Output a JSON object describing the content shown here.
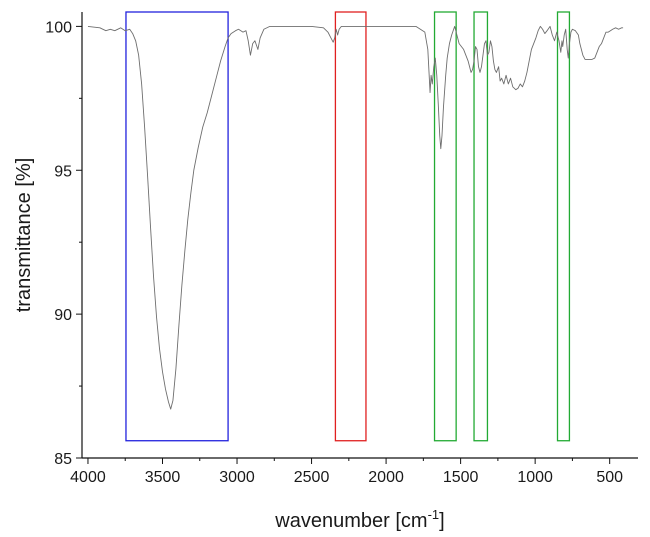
{
  "chart_data": {
    "type": "line",
    "title": "",
    "xlabel": "wavenumber [cm-1]",
    "xlabel_parts": {
      "text": "wavenumber [cm",
      "superscript": "-1",
      "suffix": "]"
    },
    "ylabel": "transmittance [%]",
    "xlim": [
      4040,
      310
    ],
    "ylim": [
      85,
      100.5
    ],
    "x_reversed": true,
    "grid": false,
    "x_ticks": [
      4000,
      3500,
      3000,
      2500,
      2000,
      1500,
      1000,
      500
    ],
    "x_minor_ticks": [
      3750,
      3250,
      2750,
      2250,
      1750,
      1250,
      750
    ],
    "y_ticks": [
      85,
      90,
      95,
      100
    ],
    "y_minor_ticks": [
      87.5,
      92.5,
      97.5
    ],
    "series": [
      {
        "color": "#6e6e6e",
        "points": [
          [
            4000,
            100.0
          ],
          [
            3920,
            99.95
          ],
          [
            3880,
            99.85
          ],
          [
            3850,
            99.9
          ],
          [
            3820,
            99.85
          ],
          [
            3780,
            99.95
          ],
          [
            3750,
            99.85
          ],
          [
            3720,
            99.9
          ],
          [
            3700,
            99.75
          ],
          [
            3680,
            99.5
          ],
          [
            3660,
            99.0
          ],
          [
            3640,
            98.0
          ],
          [
            3620,
            96.5
          ],
          [
            3600,
            94.8
          ],
          [
            3580,
            93.0
          ],
          [
            3560,
            91.3
          ],
          [
            3540,
            89.9
          ],
          [
            3520,
            88.8
          ],
          [
            3500,
            88.0
          ],
          [
            3480,
            87.4
          ],
          [
            3460,
            86.95
          ],
          [
            3445,
            86.7
          ],
          [
            3430,
            87.0
          ],
          [
            3410,
            88.1
          ],
          [
            3390,
            89.6
          ],
          [
            3370,
            91.0
          ],
          [
            3350,
            92.2
          ],
          [
            3330,
            93.3
          ],
          [
            3310,
            94.2
          ],
          [
            3290,
            95.0
          ],
          [
            3260,
            95.8
          ],
          [
            3230,
            96.5
          ],
          [
            3200,
            97.0
          ],
          [
            3170,
            97.6
          ],
          [
            3140,
            98.2
          ],
          [
            3110,
            98.8
          ],
          [
            3080,
            99.3
          ],
          [
            3060,
            99.6
          ],
          [
            3040,
            99.75
          ],
          [
            3010,
            99.85
          ],
          [
            2990,
            99.9
          ],
          [
            2960,
            99.8
          ],
          [
            2940,
            99.85
          ],
          [
            2925,
            99.5
          ],
          [
            2910,
            99.0
          ],
          [
            2895,
            99.4
          ],
          [
            2880,
            99.5
          ],
          [
            2860,
            99.2
          ],
          [
            2845,
            99.6
          ],
          [
            2820,
            99.9
          ],
          [
            2780,
            100.0
          ],
          [
            2700,
            100.0
          ],
          [
            2600,
            100.0
          ],
          [
            2500,
            100.0
          ],
          [
            2420,
            99.95
          ],
          [
            2390,
            99.8
          ],
          [
            2370,
            99.6
          ],
          [
            2355,
            99.45
          ],
          [
            2345,
            99.6
          ],
          [
            2335,
            99.9
          ],
          [
            2325,
            99.7
          ],
          [
            2315,
            99.9
          ],
          [
            2300,
            100.0
          ],
          [
            2200,
            100.0
          ],
          [
            2100,
            100.0
          ],
          [
            2000,
            100.0
          ],
          [
            1900,
            100.0
          ],
          [
            1800,
            100.0
          ],
          [
            1740,
            99.8
          ],
          [
            1720,
            99.2
          ],
          [
            1712,
            98.4
          ],
          [
            1705,
            97.7
          ],
          [
            1698,
            98.3
          ],
          [
            1690,
            98.0
          ],
          [
            1680,
            98.6
          ],
          [
            1670,
            98.9
          ],
          [
            1660,
            98.3
          ],
          [
            1650,
            97.3
          ],
          [
            1640,
            96.2
          ],
          [
            1633,
            95.75
          ],
          [
            1625,
            96.2
          ],
          [
            1615,
            97.2
          ],
          [
            1600,
            98.3
          ],
          [
            1590,
            98.9
          ],
          [
            1575,
            99.4
          ],
          [
            1560,
            99.7
          ],
          [
            1540,
            100.0
          ],
          [
            1525,
            99.7
          ],
          [
            1510,
            99.4
          ],
          [
            1495,
            99.3
          ],
          [
            1480,
            99.2
          ],
          [
            1465,
            99.0
          ],
          [
            1450,
            98.8
          ],
          [
            1440,
            98.6
          ],
          [
            1430,
            98.4
          ],
          [
            1420,
            98.5
          ],
          [
            1410,
            98.8
          ],
          [
            1400,
            99.3
          ],
          [
            1390,
            99.2
          ],
          [
            1380,
            98.6
          ],
          [
            1370,
            98.4
          ],
          [
            1360,
            98.6
          ],
          [
            1350,
            99.0
          ],
          [
            1340,
            99.4
          ],
          [
            1330,
            99.5
          ],
          [
            1320,
            99.0
          ],
          [
            1310,
            99.1
          ],
          [
            1300,
            99.5
          ],
          [
            1290,
            99.3
          ],
          [
            1280,
            98.8
          ],
          [
            1270,
            98.5
          ],
          [
            1260,
            98.4
          ],
          [
            1245,
            98.6
          ],
          [
            1235,
            98.1
          ],
          [
            1225,
            98.2
          ],
          [
            1210,
            98.0
          ],
          [
            1195,
            98.3
          ],
          [
            1180,
            98.0
          ],
          [
            1165,
            98.2
          ],
          [
            1150,
            97.9
          ],
          [
            1130,
            97.8
          ],
          [
            1115,
            97.85
          ],
          [
            1100,
            98.0
          ],
          [
            1085,
            97.9
          ],
          [
            1070,
            98.1
          ],
          [
            1055,
            98.4
          ],
          [
            1040,
            98.8
          ],
          [
            1025,
            99.2
          ],
          [
            1010,
            99.4
          ],
          [
            995,
            99.6
          ],
          [
            980,
            99.85
          ],
          [
            965,
            100.0
          ],
          [
            950,
            99.9
          ],
          [
            935,
            99.75
          ],
          [
            920,
            99.85
          ],
          [
            900,
            100.0
          ],
          [
            885,
            99.7
          ],
          [
            870,
            99.5
          ],
          [
            855,
            99.8
          ],
          [
            840,
            99.5
          ],
          [
            828,
            99.1
          ],
          [
            820,
            99.5
          ],
          [
            815,
            99.3
          ],
          [
            805,
            99.7
          ],
          [
            795,
            99.9
          ],
          [
            785,
            99.2
          ],
          [
            778,
            98.9
          ],
          [
            770,
            99.4
          ],
          [
            760,
            99.8
          ],
          [
            750,
            99.9
          ],
          [
            730,
            99.85
          ],
          [
            710,
            99.7
          ],
          [
            700,
            99.4
          ],
          [
            690,
            99.2
          ],
          [
            680,
            99.0
          ],
          [
            665,
            98.85
          ],
          [
            640,
            98.85
          ],
          [
            620,
            98.85
          ],
          [
            600,
            98.9
          ],
          [
            585,
            99.1
          ],
          [
            570,
            99.3
          ],
          [
            555,
            99.4
          ],
          [
            540,
            99.6
          ],
          [
            525,
            99.8
          ],
          [
            510,
            99.8
          ],
          [
            495,
            99.85
          ],
          [
            480,
            99.9
          ],
          [
            460,
            99.95
          ],
          [
            440,
            99.9
          ],
          [
            420,
            99.95
          ],
          [
            410,
            99.95
          ]
        ]
      }
    ],
    "highlight_boxes": [
      {
        "x_from": 3745,
        "x_to": 3060,
        "y_from": 85.6,
        "y_to": 100.5,
        "color": "#2222dd"
      },
      {
        "x_from": 2340,
        "x_to": 2135,
        "y_from": 85.6,
        "y_to": 100.5,
        "color": "#e02020"
      },
      {
        "x_from": 1675,
        "x_to": 1530,
        "y_from": 85.6,
        "y_to": 100.5,
        "color": "#22aa33"
      },
      {
        "x_from": 1410,
        "x_to": 1320,
        "y_from": 85.6,
        "y_to": 100.5,
        "color": "#22aa33"
      },
      {
        "x_from": 850,
        "x_to": 770,
        "y_from": 85.6,
        "y_to": 100.5,
        "color": "#22aa33"
      }
    ]
  }
}
